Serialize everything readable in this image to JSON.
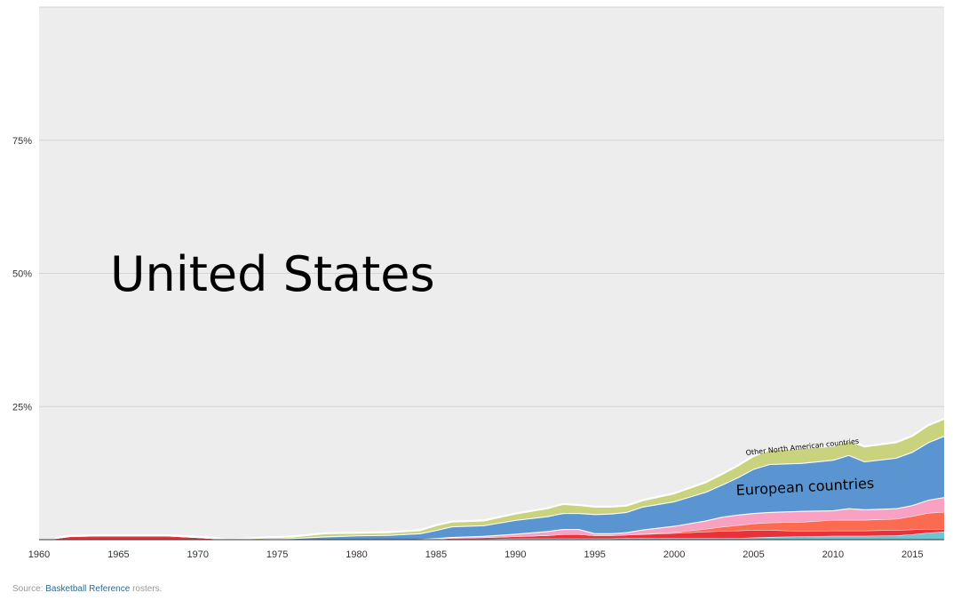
{
  "chart_data": {
    "type": "area",
    "stacked": true,
    "normalized": true,
    "x": [
      1961,
      1962,
      1964,
      1966,
      1968,
      1970,
      1971,
      1972,
      1973,
      1974,
      1976,
      1978,
      1980,
      1982,
      1984,
      1985,
      1986,
      1988,
      1990,
      1992,
      1993,
      1994,
      1995,
      1996,
      1997,
      1998,
      2000,
      2002,
      2003,
      2004,
      2005,
      2006,
      2008,
      2010,
      2011,
      2012,
      2014,
      2015,
      2016,
      2017
    ],
    "series": [
      {
        "color": "#6bc6d1",
        "values": [
          0,
          0,
          0,
          0,
          0,
          0,
          0,
          0,
          0,
          0,
          0,
          0,
          0,
          0,
          0,
          0,
          0.1,
          0.1,
          0.2,
          0.2,
          0.2,
          0.2,
          0.2,
          0.2,
          0.3,
          0.3,
          0.3,
          0.3,
          0.3,
          0.3,
          0.4,
          0.5,
          0.6,
          0.7,
          0.7,
          0.7,
          0.8,
          1.0,
          1.3,
          1.5
        ]
      },
      {
        "color": "#e8313a",
        "values": [
          0.3,
          0.7,
          0.8,
          0.8,
          0.8,
          0.5,
          0.3,
          0,
          0,
          0,
          0,
          0,
          0,
          0,
          0,
          0.1,
          0.2,
          0.3,
          0.4,
          0.6,
          0.8,
          0.8,
          0.6,
          0.6,
          0.6,
          0.7,
          0.9,
          1.2,
          1.3,
          1.4,
          1.4,
          1.3,
          1.0,
          1.0,
          1.0,
          1.0,
          1.0,
          0.9,
          0.7,
          0.5
        ]
      },
      {
        "color": "#fb6b4f",
        "values": [
          0,
          0,
          0,
          0,
          0,
          0,
          0,
          0,
          0,
          0,
          0,
          0,
          0,
          0,
          0,
          0,
          0,
          0,
          0,
          0,
          0,
          0,
          0,
          0,
          0,
          0.1,
          0.2,
          0.5,
          0.8,
          1.0,
          1.2,
          1.4,
          1.7,
          2.0,
          2.0,
          2.0,
          2.1,
          2.5,
          3.0,
          3.2
        ]
      },
      {
        "color": "#f9a1c3",
        "values": [
          0,
          0,
          0,
          0,
          0,
          0,
          0,
          0,
          0,
          0,
          0,
          0,
          0,
          0,
          0.1,
          0.2,
          0.2,
          0.3,
          0.5,
          0.8,
          1.0,
          1.0,
          0.4,
          0.4,
          0.5,
          0.8,
          1.2,
          1.6,
          1.9,
          2.0,
          2.0,
          2.0,
          2.1,
          1.8,
          2.2,
          2.0,
          2.0,
          2.1,
          2.5,
          2.8
        ]
      },
      {
        "color": "#5a95d2",
        "values": [
          0,
          0,
          0,
          0,
          0,
          0,
          0,
          0,
          0,
          0.1,
          0.3,
          0.6,
          0.8,
          0.9,
          1.1,
          1.5,
          2.0,
          2.0,
          2.6,
          2.8,
          3.0,
          3.0,
          3.6,
          3.7,
          3.8,
          4.3,
          4.6,
          5.4,
          6.0,
          7.0,
          8.3,
          9.0,
          9.0,
          9.5,
          10.0,
          9.0,
          9.5,
          10.0,
          10.8,
          11.5
        ]
      },
      {
        "color": "#c9d37d",
        "values": [
          0,
          0,
          0,
          0,
          0,
          0,
          0,
          0,
          0.2,
          0.3,
          0.3,
          0.6,
          0.5,
          0.5,
          0.6,
          0.9,
          0.9,
          0.9,
          1.2,
          1.5,
          1.7,
          1.5,
          1.4,
          1.3,
          1.2,
          1.2,
          1.5,
          1.8,
          2.0,
          2.2,
          2.4,
          2.7,
          2.8,
          2.6,
          2.7,
          2.8,
          2.9,
          3.0,
          3.2,
          3.2
        ]
      }
    ],
    "ylim": [
      0,
      100
    ],
    "xlim": [
      1960,
      2017
    ],
    "y_ticks": [
      25,
      50,
      75
    ],
    "y_tick_labels": [
      "25%",
      "50%",
      "75%"
    ],
    "x_ticks": [
      1960,
      1965,
      1970,
      1975,
      1980,
      1985,
      1990,
      1995,
      2000,
      2005,
      2010,
      2015
    ],
    "x_tick_labels": [
      "1960",
      "1965",
      "1970",
      "1975",
      "1980",
      "1985",
      "1990",
      "1995",
      "2000",
      "2005",
      "2010",
      "2015"
    ],
    "grid": true,
    "annotations": {
      "us": "United States",
      "europe": "European countries",
      "north_america": "Other North American countries"
    }
  },
  "source": {
    "prefix": "Source: ",
    "link": "Basketball Reference",
    "suffix": " rosters."
  },
  "colors": {
    "background": "#ededed",
    "gridline": "#d4d4d4",
    "separator": "#ffffff"
  }
}
